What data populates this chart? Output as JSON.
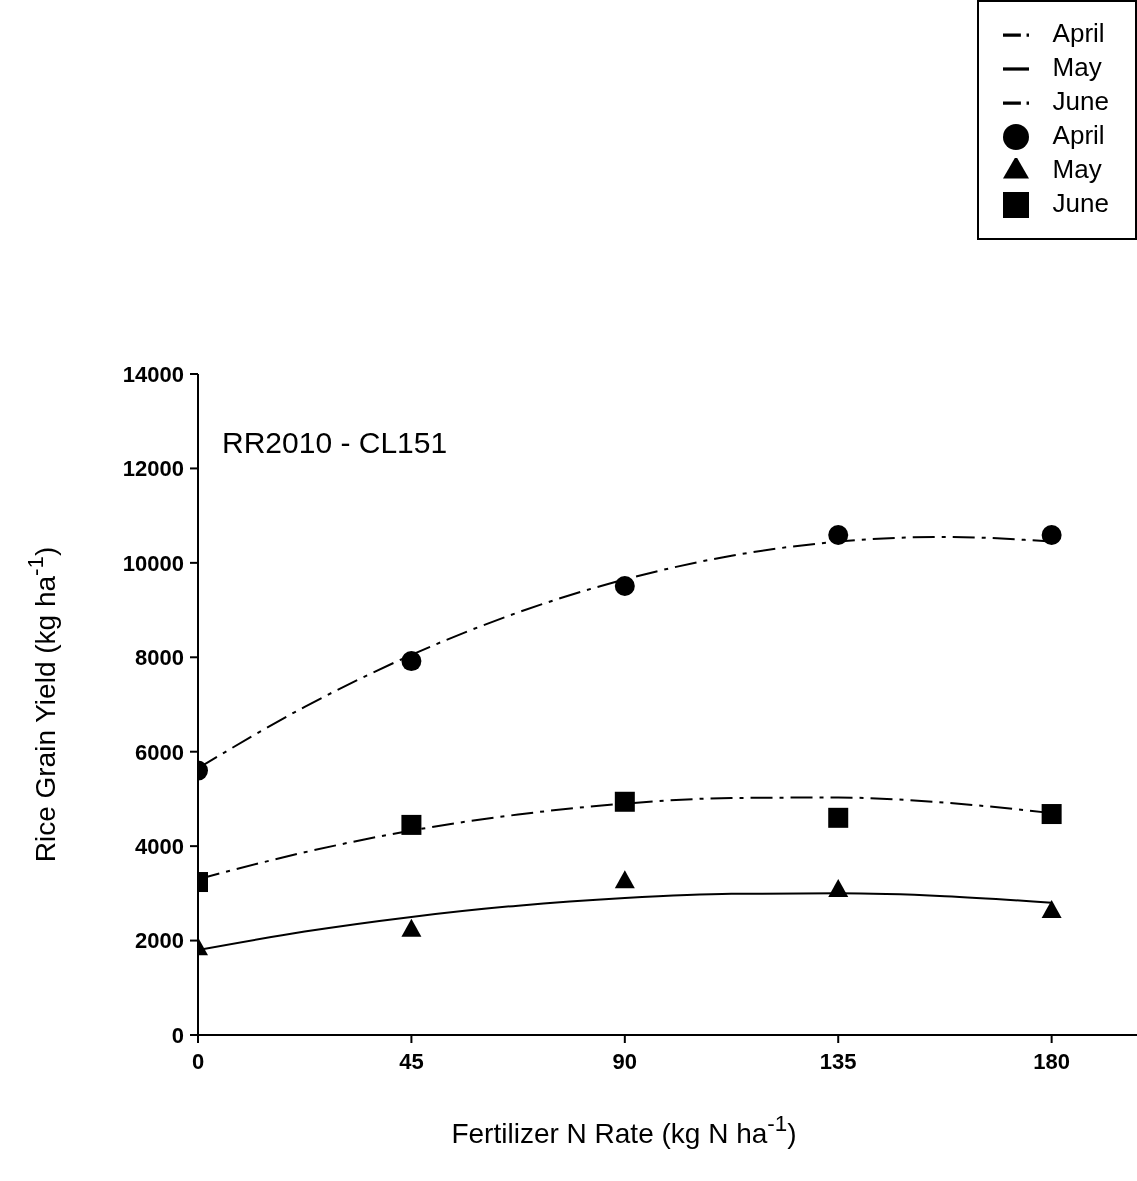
{
  "chart_data": {
    "type": "scatter",
    "xlabel": "Fertilizer N Rate (kg N ha$^{-1}$)",
    "ylabel": "Rice Grain Yield (kg ha$^{-1}$)",
    "annotations": [
      "RR2010 - CL151"
    ],
    "xlim": [
      0,
      198
    ],
    "xticks": [
      0,
      45,
      90,
      135,
      180
    ],
    "ylim": [
      0,
      14000
    ],
    "yticks": [
      0,
      2000,
      4000,
      6000,
      8000,
      10000,
      12000,
      14000
    ],
    "grid": false,
    "legend": "top right",
    "series": [
      {
        "name": "April",
        "type": "line",
        "color": "#000000",
        "line_style": "dashed",
        "marker": "none",
        "x": [
          0,
          22.5,
          45,
          67.5,
          90,
          112.5,
          135,
          157.5,
          180
        ],
        "values": [
          5650,
          6950,
          8050,
          8950,
          9650,
          10150,
          10450,
          10550,
          10450
        ]
      },
      {
        "name": "May",
        "type": "line",
        "color": "#000000",
        "line_style": "solid",
        "marker": "none",
        "x": [
          0,
          22.5,
          45,
          67.5,
          90,
          112.5,
          135,
          157.5,
          180
        ],
        "values": [
          1800,
          2190,
          2500,
          2740,
          2900,
          2990,
          3000,
          2940,
          2800
        ]
      },
      {
        "name": "June",
        "type": "line",
        "color": "#000000",
        "line_style": "dashed",
        "marker": "none",
        "x": [
          0,
          22.5,
          45,
          67.5,
          90,
          112.5,
          135,
          157.5,
          180
        ],
        "values": [
          3300,
          3870,
          4330,
          4670,
          4900,
          5020,
          5030,
          4920,
          4700
        ]
      },
      {
        "name": "April",
        "type": "scatter",
        "color": "#000000",
        "marker": "circle",
        "x": [
          0,
          45,
          90,
          135,
          180
        ],
        "values": [
          5600,
          7920,
          9510,
          10590,
          10590
        ]
      },
      {
        "name": "May",
        "type": "scatter",
        "color": "#000000",
        "marker": "triangle",
        "x": [
          0,
          45,
          90,
          135,
          180
        ],
        "values": [
          1860,
          2250,
          3280,
          3090,
          2650
        ]
      },
      {
        "name": "June",
        "type": "scatter",
        "color": "#000000",
        "marker": "square",
        "x": [
          0,
          45,
          90,
          135,
          180
        ],
        "values": [
          3240,
          4450,
          4940,
          4600,
          4680
        ]
      }
    ]
  }
}
